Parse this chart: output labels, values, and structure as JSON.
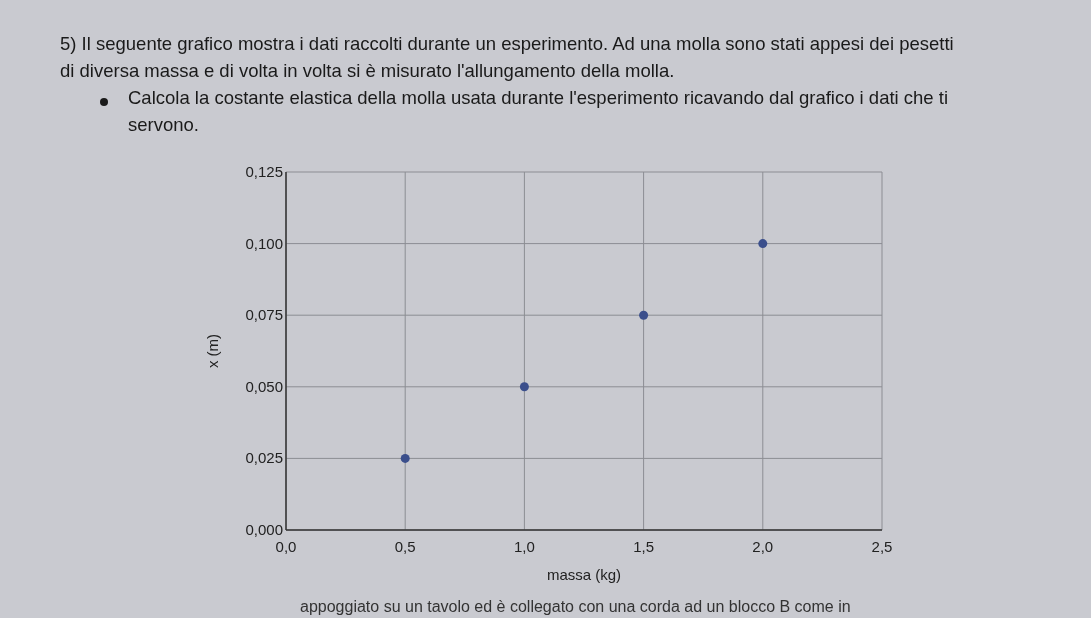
{
  "chart_data": {
    "type": "scatter",
    "title": "5) Il seguente grafico mostra i dati raccolti durante un esperimento. Ad una molla sono stati appesi dei pesetti di diversa massa e di volta in volta si è misurato l'allungamento della molla.",
    "subtitle": "Calcola la costante elastica della molla usata durante l'esperimento ricavando dal grafico i dati che ti servono.",
    "xlabel": "massa (kg)",
    "ylabel": "x (m)",
    "x": [
      0.5,
      1.0,
      1.5,
      2.0
    ],
    "series": [
      {
        "color": "#3b4f8c",
        "values": [
          0.025,
          0.05,
          0.075,
          0.1
        ]
      }
    ],
    "xlim": [
      0,
      2.5
    ],
    "xticks": [
      {
        "value": 0,
        "label": "0,0"
      },
      {
        "value": 0.5,
        "label": "0,5"
      },
      {
        "value": 1,
        "label": "1,0"
      },
      {
        "value": 1.5,
        "label": "1,5"
      },
      {
        "value": 2,
        "label": "2,0"
      },
      {
        "value": 2.5,
        "label": "2,5"
      }
    ],
    "ylim": [
      0,
      0.125
    ],
    "yticks": [
      {
        "value": 0,
        "label": "0,000"
      },
      {
        "value": 0.025,
        "label": "0,025"
      },
      {
        "value": 0.05,
        "label": "0,050"
      },
      {
        "value": 0.075,
        "label": "0,075"
      },
      {
        "value": 0.1,
        "label": "0,100"
      },
      {
        "value": 0.125,
        "label": "0,125"
      }
    ],
    "grid": true,
    "marker": "circle",
    "annotations": [
      "appoggiato su un tavolo ed è collegato con una corda ad un blocco B come in"
    ]
  }
}
